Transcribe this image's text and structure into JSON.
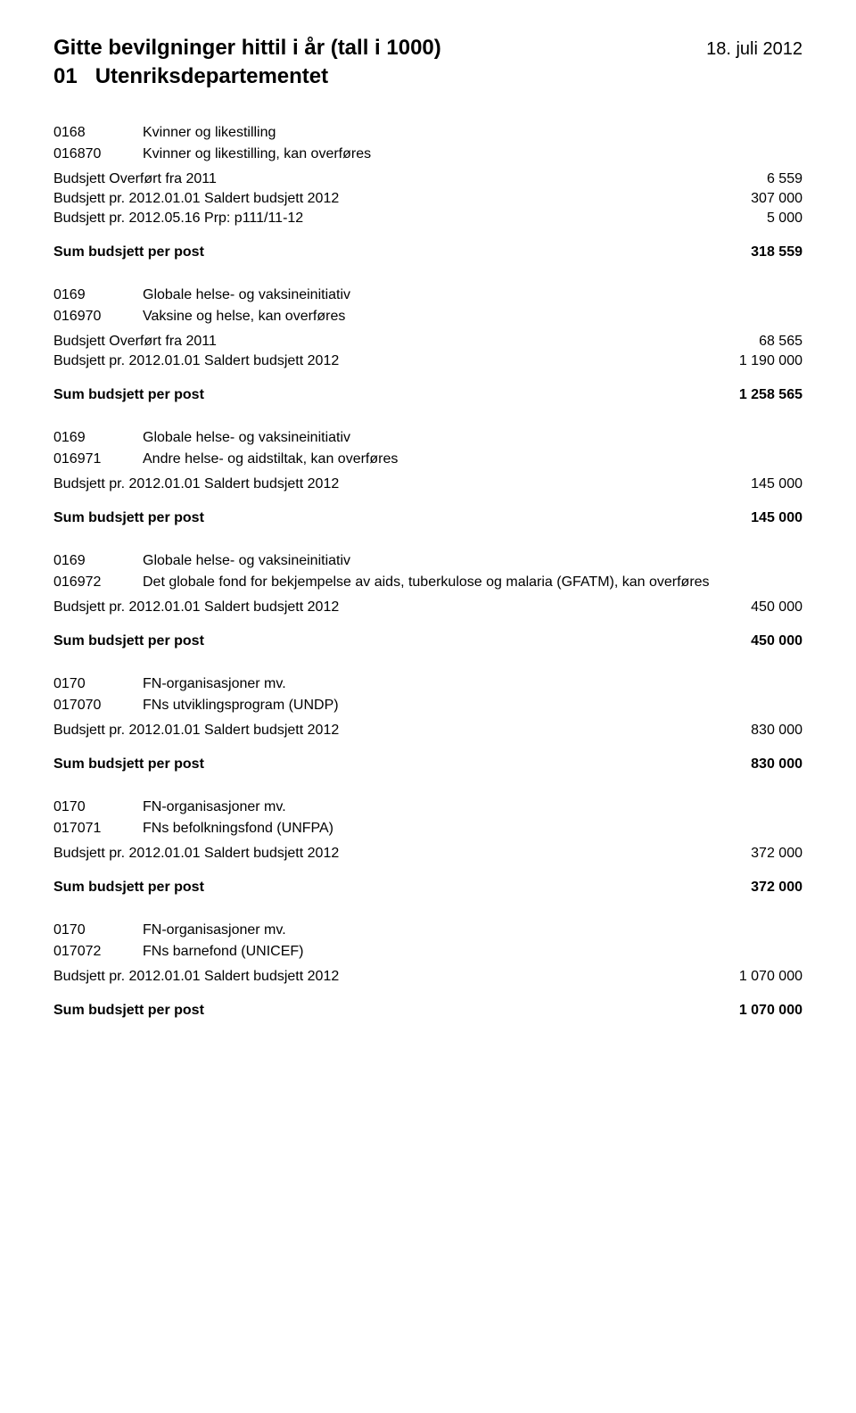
{
  "header": {
    "title": "Gitte bevilgninger hittil i år (tall i 1000)",
    "date": "18. juli 2012",
    "sub_code": "01",
    "sub_title": "Utenriksdepartementet"
  },
  "sumLabel": "Sum  budsjett  per post",
  "sections": [
    {
      "entries": [
        {
          "code": "0168",
          "desc": "Kvinner og likestilling"
        },
        {
          "code": "016870",
          "desc": "Kvinner og likestilling, kan overføres"
        }
      ],
      "lines": [
        {
          "label": "Budsjett Overført fra 2011",
          "value": "6 559"
        },
        {
          "label": "Budsjett pr. 2012.01.01 Saldert budsjett 2012",
          "value": "307 000"
        },
        {
          "label": "Budsjett pr. 2012.05.16 Prp: p111/11-12",
          "value": "5 000"
        }
      ],
      "sum": "318 559"
    },
    {
      "entries": [
        {
          "code": "0169",
          "desc": "Globale helse- og vaksineinitiativ"
        },
        {
          "code": "016970",
          "desc": "Vaksine og helse, kan overføres"
        }
      ],
      "lines": [
        {
          "label": "Budsjett Overført fra 2011",
          "value": "68 565"
        },
        {
          "label": "Budsjett pr. 2012.01.01 Saldert budsjett 2012",
          "value": "1 190 000"
        }
      ],
      "sum": "1 258 565"
    },
    {
      "entries": [
        {
          "code": "0169",
          "desc": "Globale helse- og vaksineinitiativ"
        },
        {
          "code": "016971",
          "desc": "Andre helse- og aidstiltak, kan overføres"
        }
      ],
      "lines": [
        {
          "label": "Budsjett pr. 2012.01.01 Saldert budsjett 2012",
          "value": "145 000"
        }
      ],
      "sum": "145 000"
    },
    {
      "entries": [
        {
          "code": "0169",
          "desc": "Globale helse- og vaksineinitiativ"
        },
        {
          "code": "016972",
          "desc": "Det globale fond for bekjempelse av aids, tuberkulose og malaria (GFATM), kan overføres"
        }
      ],
      "lines": [
        {
          "label": "Budsjett pr. 2012.01.01 Saldert budsjett 2012",
          "value": "450 000"
        }
      ],
      "sum": "450 000"
    },
    {
      "entries": [
        {
          "code": "0170",
          "desc": "FN-organisasjoner mv."
        },
        {
          "code": "017070",
          "desc": "FNs utviklingsprogram (UNDP)"
        }
      ],
      "lines": [
        {
          "label": "Budsjett pr. 2012.01.01 Saldert budsjett 2012",
          "value": "830 000"
        }
      ],
      "sum": "830 000"
    },
    {
      "entries": [
        {
          "code": "0170",
          "desc": "FN-organisasjoner mv."
        },
        {
          "code": "017071",
          "desc": "FNs befolkningsfond (UNFPA)"
        }
      ],
      "lines": [
        {
          "label": "Budsjett pr. 2012.01.01 Saldert budsjett 2012",
          "value": "372 000"
        }
      ],
      "sum": "372 000"
    },
    {
      "entries": [
        {
          "code": "0170",
          "desc": "FN-organisasjoner mv."
        },
        {
          "code": "017072",
          "desc": "FNs barnefond (UNICEF)"
        }
      ],
      "lines": [
        {
          "label": "Budsjett pr. 2012.01.01 Saldert budsjett 2012",
          "value": "1 070 000"
        }
      ],
      "sum": "1 070 000"
    }
  ]
}
